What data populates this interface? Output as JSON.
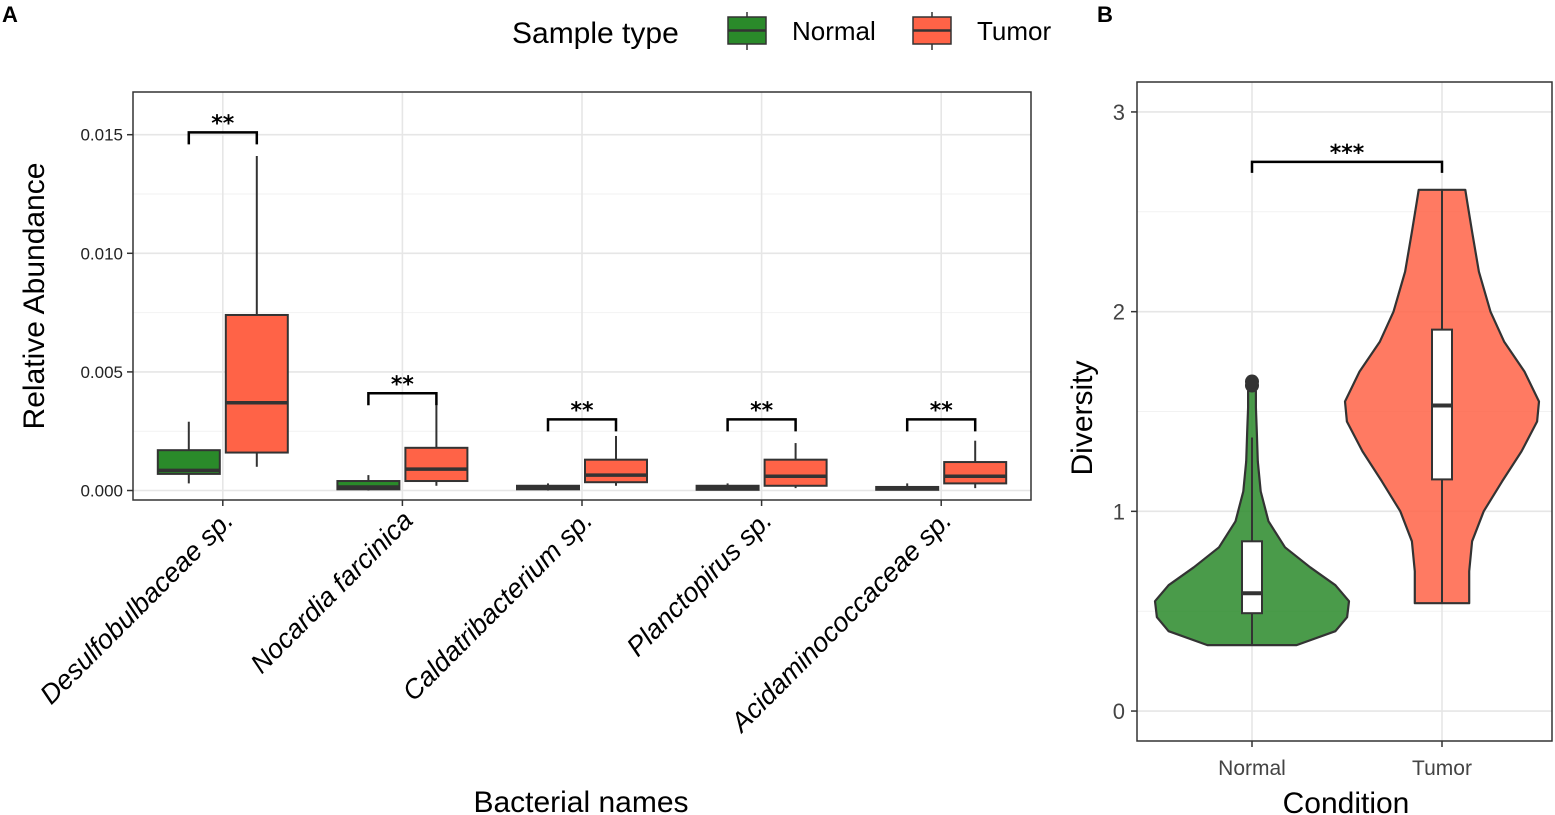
{
  "legend": {
    "title": "Sample type",
    "items": [
      {
        "label": "Normal",
        "color": "#2a8a2a"
      },
      {
        "label": "Tumor",
        "color": "#ff6347"
      }
    ]
  },
  "chart_data": [
    {
      "panel": "A",
      "type": "box",
      "xlabel": "Bacterial names",
      "ylabel": "Relative Abundance",
      "ylim": [
        -0.0004,
        0.0168
      ],
      "yticks": [
        "0.000",
        "0.005",
        "0.010",
        "0.015"
      ],
      "yticks_values": [
        0,
        0.005,
        0.01,
        0.015
      ],
      "categories": [
        "Desulfobulbaceae sp.",
        "Nocardia farcinica",
        "Caldatribacterium sp.",
        "Planctopirus sp.",
        "Acidaminococcaceae sp."
      ],
      "series": [
        {
          "name": "Normal",
          "color": "#2a8a2a",
          "boxes": [
            {
              "min": 0.0003,
              "q1": 0.0007,
              "median": 0.00085,
              "q3": 0.0017,
              "max": 0.0029
            },
            {
              "min": 0.0,
              "q1": 5e-05,
              "median": 0.00015,
              "q3": 0.0004,
              "max": 0.00065
            },
            {
              "min": 0.0,
              "q1": 5e-05,
              "median": 0.0001,
              "q3": 0.0002,
              "max": 0.0003
            },
            {
              "min": 0.0,
              "q1": 3e-05,
              "median": 0.0001,
              "q3": 0.0002,
              "max": 0.0003
            },
            {
              "min": 0.0,
              "q1": 3e-05,
              "median": 8e-05,
              "q3": 0.00015,
              "max": 0.0003
            }
          ]
        },
        {
          "name": "Tumor",
          "color": "#ff6347",
          "boxes": [
            {
              "min": 0.001,
              "q1": 0.0016,
              "median": 0.0037,
              "q3": 0.0074,
              "max": 0.0141
            },
            {
              "min": 0.0002,
              "q1": 0.0004,
              "median": 0.0009,
              "q3": 0.0018,
              "max": 0.0036
            },
            {
              "min": 0.0002,
              "q1": 0.00035,
              "median": 0.00065,
              "q3": 0.0013,
              "max": 0.0023
            },
            {
              "min": 0.0001,
              "q1": 0.0002,
              "median": 0.0006,
              "q3": 0.0013,
              "max": 0.002
            },
            {
              "min": 0.0001,
              "q1": 0.0003,
              "median": 0.0006,
              "q3": 0.0012,
              "max": 0.0021
            }
          ]
        }
      ],
      "annotations": [
        {
          "label": "**",
          "y": 0.0151
        },
        {
          "label": "**",
          "y": 0.0041
        },
        {
          "label": "**",
          "y": 0.003
        },
        {
          "label": "**",
          "y": 0.003
        },
        {
          "label": "**",
          "y": 0.003
        }
      ]
    },
    {
      "panel": "B",
      "type": "violin",
      "xlabel": "Condition",
      "ylabel": "Diversity",
      "ylim": [
        -0.15,
        3.15
      ],
      "yticks": [
        "0",
        "1",
        "2",
        "3"
      ],
      "yticks_values": [
        0,
        1,
        2,
        3
      ],
      "categories": [
        "Normal",
        "Tumor"
      ],
      "series": [
        {
          "name": "Normal",
          "color": "#2a8a2a",
          "box": {
            "min": 0.33,
            "q1": 0.49,
            "median": 0.59,
            "q3": 0.85,
            "max": 1.37
          },
          "outliers": [
            1.63,
            1.65
          ],
          "density": [
            [
              0.33,
              0.46
            ],
            [
              0.4,
              0.86
            ],
            [
              0.47,
              0.98
            ],
            [
              0.55,
              1.0
            ],
            [
              0.63,
              0.86
            ],
            [
              0.72,
              0.6
            ],
            [
              0.82,
              0.34
            ],
            [
              0.95,
              0.17
            ],
            [
              1.1,
              0.09
            ],
            [
              1.25,
              0.06
            ],
            [
              1.4,
              0.05
            ],
            [
              1.52,
              0.04
            ],
            [
              1.6,
              0.04
            ],
            [
              1.65,
              0.02
            ]
          ]
        },
        {
          "name": "Tumor",
          "color": "#ff6347",
          "box": {
            "min": 0.54,
            "q1": 1.16,
            "median": 1.53,
            "q3": 1.91,
            "max": 2.61
          },
          "outliers": [],
          "density": [
            [
              0.54,
              0.28
            ],
            [
              0.7,
              0.28
            ],
            [
              0.85,
              0.31
            ],
            [
              1.0,
              0.43
            ],
            [
              1.15,
              0.62
            ],
            [
              1.3,
              0.82
            ],
            [
              1.45,
              0.98
            ],
            [
              1.55,
              1.0
            ],
            [
              1.7,
              0.85
            ],
            [
              1.85,
              0.64
            ],
            [
              2.0,
              0.5
            ],
            [
              2.2,
              0.38
            ],
            [
              2.4,
              0.31
            ],
            [
              2.55,
              0.26
            ],
            [
              2.61,
              0.24
            ]
          ]
        }
      ],
      "annotations": [
        {
          "label": "***",
          "y": 2.75
        }
      ]
    }
  ],
  "panel_labels": [
    "A",
    "B"
  ]
}
